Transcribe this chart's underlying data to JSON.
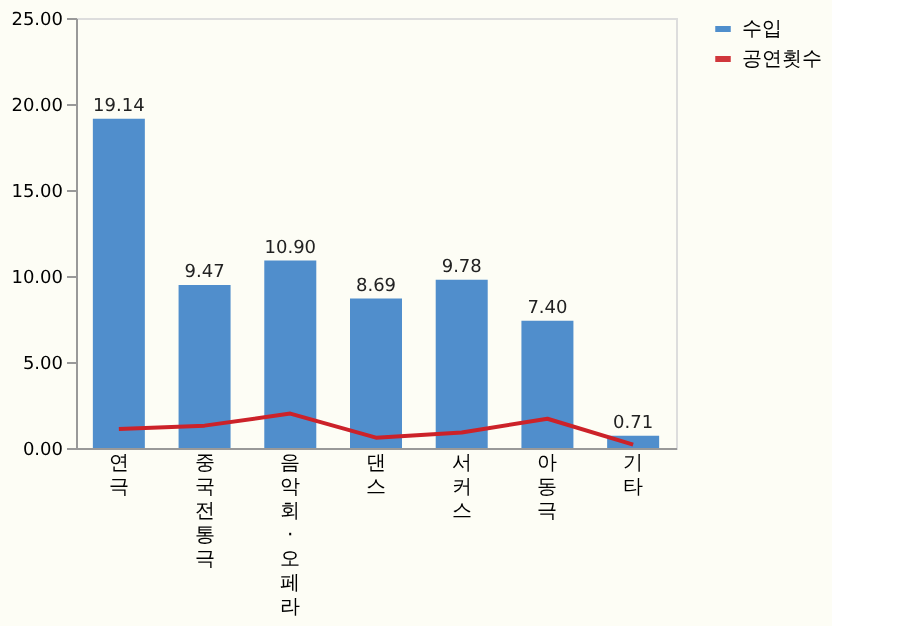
{
  "chart_data": {
    "type": "bar",
    "categories": [
      "연극",
      "중국전통극",
      "음악회·오페라",
      "댄스",
      "서커스",
      "아동극",
      "기타"
    ],
    "series": [
      {
        "name": "수입",
        "color": "#3d82c8",
        "values": [
          19.14,
          9.47,
          10.9,
          8.69,
          9.78,
          7.4,
          0.71
        ],
        "value_labels": [
          "19.14",
          "9.47",
          "10.90",
          "8.69",
          "9.78",
          "7.40",
          "0.71"
        ]
      },
      {
        "name": "공연횟수",
        "type": "line",
        "color": "#cc2229",
        "values": [
          1.1,
          1.3,
          2.0,
          0.6,
          0.9,
          1.7,
          0.2
        ]
      }
    ],
    "ylim": [
      0,
      25
    ],
    "yticks": [
      {
        "value": 0,
        "label": "0.00"
      },
      {
        "value": 5,
        "label": "5.00"
      },
      {
        "value": 10,
        "label": "10.00"
      },
      {
        "value": 15,
        "label": "15.00"
      },
      {
        "value": 20,
        "label": "20.00"
      },
      {
        "value": 25,
        "label": "25.00"
      }
    ],
    "grid": false,
    "legend": "right",
    "marker": "none",
    "line_style": "solid"
  }
}
